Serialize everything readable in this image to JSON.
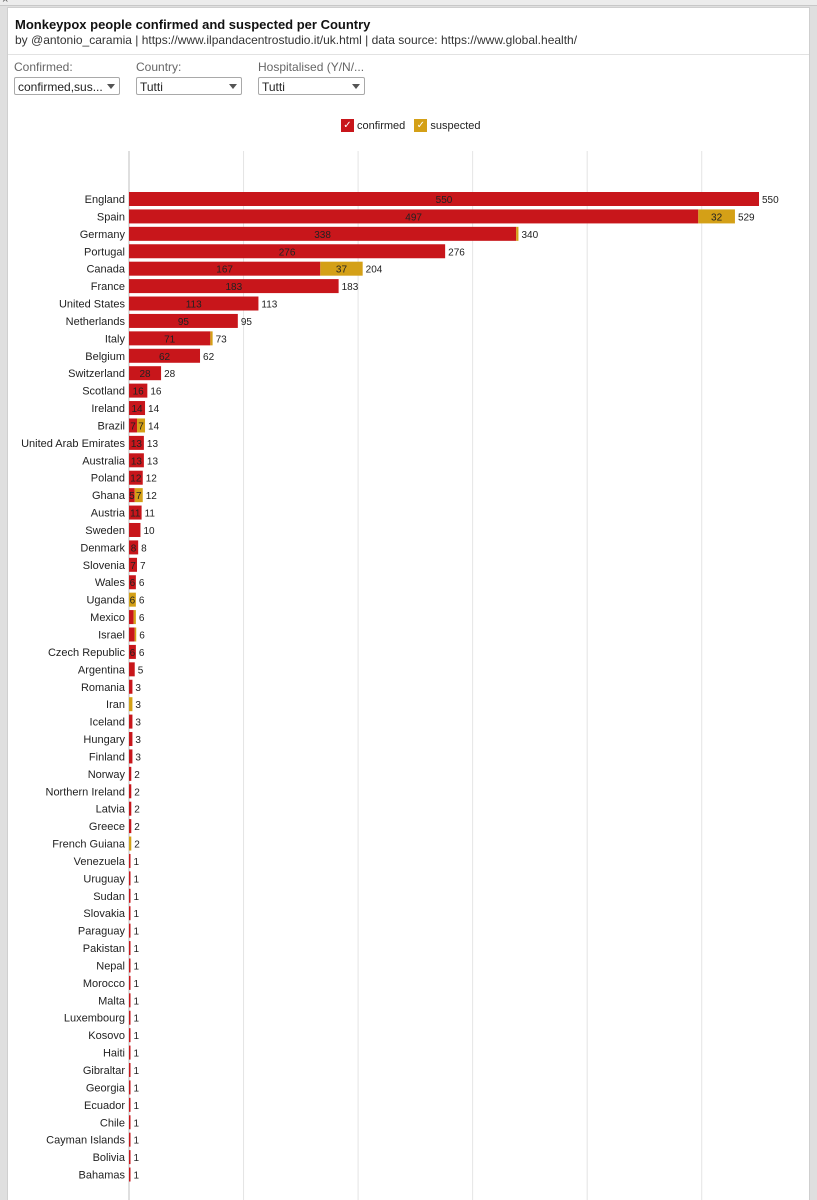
{
  "window": {
    "close_glyph": "×"
  },
  "header": {
    "title": "Monkeypox people confirmed and suspected per Country",
    "subtitle": "by @antonio_caramia | https://www.ilpandacentrostudio.it/uk.html | data source: https://www.global.health/"
  },
  "filters": {
    "confirmed": {
      "label": "Confirmed:",
      "value": "confirmed,sus..."
    },
    "country": {
      "label": "Country:",
      "value": "Tutti"
    },
    "hospitalised": {
      "label": "Hospitalised (Y/N/...",
      "value": "Tutti"
    }
  },
  "legend": {
    "confirmed": {
      "label": "confirmed",
      "check": "✓"
    },
    "suspected": {
      "label": "suspected",
      "check": "✓"
    }
  },
  "colors": {
    "confirmed": "#c8161b",
    "suspected": "#d4a017",
    "grid": "#e4e4e4",
    "axis": "#bfbfbf"
  },
  "chart_data": {
    "type": "bar",
    "orientation": "horizontal",
    "stacked": true,
    "title": "Monkeypox people confirmed and suspected per Country",
    "xlim": [
      0,
      600
    ],
    "grid": true,
    "legend_position": "top-center",
    "categories": [
      "England",
      "Spain",
      "Germany",
      "Portugal",
      "Canada",
      "France",
      "United States",
      "Netherlands",
      "Italy",
      "Belgium",
      "Switzerland",
      "Scotland",
      "Ireland",
      "Brazil",
      "United Arab Emirates",
      "Australia",
      "Poland",
      "Ghana",
      "Austria",
      "Sweden",
      "Denmark",
      "Slovenia",
      "Wales",
      "Uganda",
      "Mexico",
      "Israel",
      "Czech Republic",
      "Argentina",
      "Romania",
      "Iran",
      "Iceland",
      "Hungary",
      "Finland",
      "Norway",
      "Northern Ireland",
      "Latvia",
      "Greece",
      "French Guiana",
      "Venezuela",
      "Uruguay",
      "Sudan",
      "Slovakia",
      "Paraguay",
      "Pakistan",
      "Nepal",
      "Morocco",
      "Malta",
      "Luxembourg",
      "Kosovo",
      "Haiti",
      "Gibraltar",
      "Georgia",
      "Ecuador",
      "Chile",
      "Cayman Islands",
      "Bolivia",
      "Bahamas"
    ],
    "series": [
      {
        "name": "confirmed",
        "values": [
          550,
          497,
          338,
          276,
          167,
          183,
          113,
          95,
          71,
          62,
          28,
          16,
          14,
          7,
          13,
          13,
          12,
          5,
          11,
          10,
          8,
          7,
          6,
          0,
          4,
          5,
          6,
          5,
          3,
          0,
          3,
          3,
          3,
          2,
          2,
          2,
          2,
          0,
          1,
          1,
          1,
          1,
          1,
          1,
          1,
          1,
          1,
          1,
          1,
          1,
          1,
          1,
          1,
          1,
          1,
          1,
          1
        ]
      },
      {
        "name": "suspected",
        "values": [
          0,
          32,
          2,
          0,
          37,
          0,
          0,
          0,
          2,
          0,
          0,
          0,
          0,
          7,
          0,
          0,
          0,
          7,
          0,
          0,
          0,
          0,
          0,
          6,
          2,
          1,
          0,
          0,
          0,
          3,
          0,
          0,
          0,
          0,
          0,
          0,
          0,
          2,
          0,
          0,
          0,
          0,
          0,
          0,
          0,
          0,
          0,
          0,
          0,
          0,
          0,
          0,
          0,
          0,
          0,
          0,
          0
        ]
      }
    ],
    "totals": [
      550,
      529,
      340,
      276,
      204,
      183,
      113,
      95,
      73,
      62,
      28,
      16,
      14,
      14,
      13,
      13,
      12,
      12,
      11,
      10,
      8,
      7,
      6,
      6,
      6,
      6,
      6,
      5,
      3,
      3,
      3,
      3,
      3,
      2,
      2,
      2,
      2,
      2,
      1,
      1,
      1,
      1,
      1,
      1,
      1,
      1,
      1,
      1,
      1,
      1,
      1,
      1,
      1,
      1,
      1,
      1,
      1
    ],
    "label_min_width_note": "segment labels shown where bar is wide enough",
    "segment_labels": {
      "confirmed": [
        "550",
        "497",
        "338",
        "276",
        "167",
        "183",
        "113",
        "95",
        "71",
        "62",
        "28",
        "16",
        "14",
        "7",
        "13",
        "13",
        "12",
        "5",
        "11",
        "",
        "8",
        "7",
        "6",
        "",
        "",
        "",
        "6",
        "",
        "",
        "",
        "",
        "",
        "",
        "",
        "",
        "",
        "",
        "",
        "",
        "",
        "",
        "",
        "",
        "",
        "",
        "",
        "",
        "",
        "",
        "",
        "",
        "",
        "",
        "",
        "",
        "",
        ""
      ],
      "suspected": [
        "",
        "32",
        "",
        "",
        "37",
        "",
        "",
        "",
        "",
        "",
        "",
        "",
        "",
        "7",
        "",
        "",
        "",
        "7",
        "",
        "",
        "",
        "",
        "",
        "6",
        "",
        "",
        "",
        "",
        "",
        "",
        "",
        "",
        "",
        "",
        "",
        "",
        "",
        "",
        "",
        "",
        "",
        "",
        "",
        "",
        "",
        "",
        "",
        "",
        "",
        "",
        "",
        "",
        "",
        "",
        "",
        "",
        ""
      ]
    }
  }
}
